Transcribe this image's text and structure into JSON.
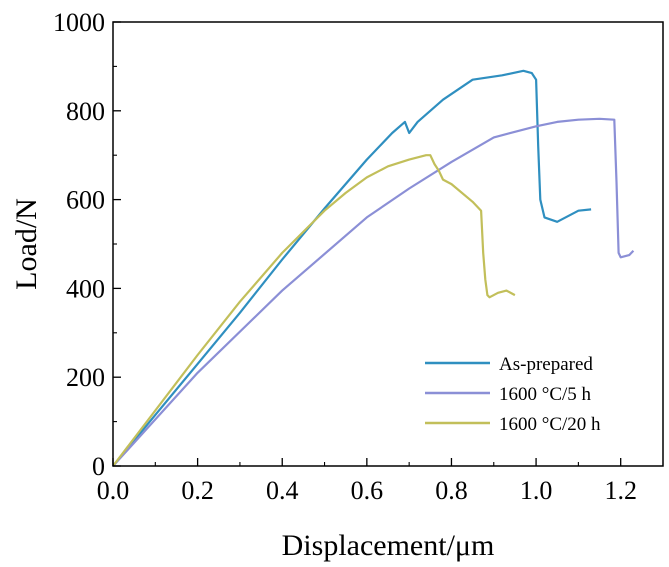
{
  "chart_data": {
    "type": "line",
    "xlabel": "Displacement/μm",
    "ylabel": "Load/N",
    "xlim": [
      0.0,
      1.3
    ],
    "ylim": [
      0,
      1000
    ],
    "x_ticks": [
      "0.0",
      "0.2",
      "0.4",
      "0.6",
      "0.8",
      "1.0",
      "1.2"
    ],
    "y_ticks": [
      "0",
      "200",
      "400",
      "600",
      "800",
      "1000"
    ],
    "legend_position": "bottom-right",
    "grid": false,
    "series": [
      {
        "name": "As-prepared",
        "color": "#2f8fc0",
        "x": [
          0.0,
          0.1,
          0.2,
          0.3,
          0.4,
          0.5,
          0.6,
          0.66,
          0.69,
          0.7,
          0.72,
          0.78,
          0.85,
          0.92,
          0.97,
          0.99,
          1.0,
          1.005,
          1.01,
          1.02,
          1.05,
          1.1,
          1.13
        ],
        "y": [
          0,
          115,
          230,
          345,
          465,
          580,
          690,
          750,
          775,
          750,
          775,
          825,
          870,
          880,
          890,
          885,
          870,
          720,
          600,
          560,
          550,
          575,
          578
        ]
      },
      {
        "name": "1600 °C/5 h",
        "color": "#8b8fd6",
        "x": [
          0.0,
          0.2,
          0.4,
          0.6,
          0.7,
          0.8,
          0.9,
          1.0,
          1.05,
          1.1,
          1.15,
          1.185,
          1.19,
          1.195,
          1.2,
          1.22,
          1.23
        ],
        "y": [
          0,
          210,
          395,
          560,
          625,
          685,
          740,
          765,
          775,
          780,
          782,
          780,
          640,
          480,
          470,
          475,
          485
        ]
      },
      {
        "name": "1600 °C/20 h",
        "color": "#c2bf5a",
        "x": [
          0.0,
          0.1,
          0.2,
          0.3,
          0.4,
          0.5,
          0.55,
          0.6,
          0.65,
          0.7,
          0.74,
          0.75,
          0.76,
          0.77,
          0.78,
          0.8,
          0.85,
          0.87,
          0.875,
          0.88,
          0.885,
          0.89,
          0.91,
          0.93,
          0.95
        ],
        "y": [
          0,
          125,
          250,
          370,
          480,
          575,
          615,
          650,
          675,
          690,
          700,
          700,
          680,
          665,
          645,
          635,
          595,
          575,
          480,
          420,
          385,
          380,
          390,
          395,
          385
        ]
      }
    ]
  }
}
